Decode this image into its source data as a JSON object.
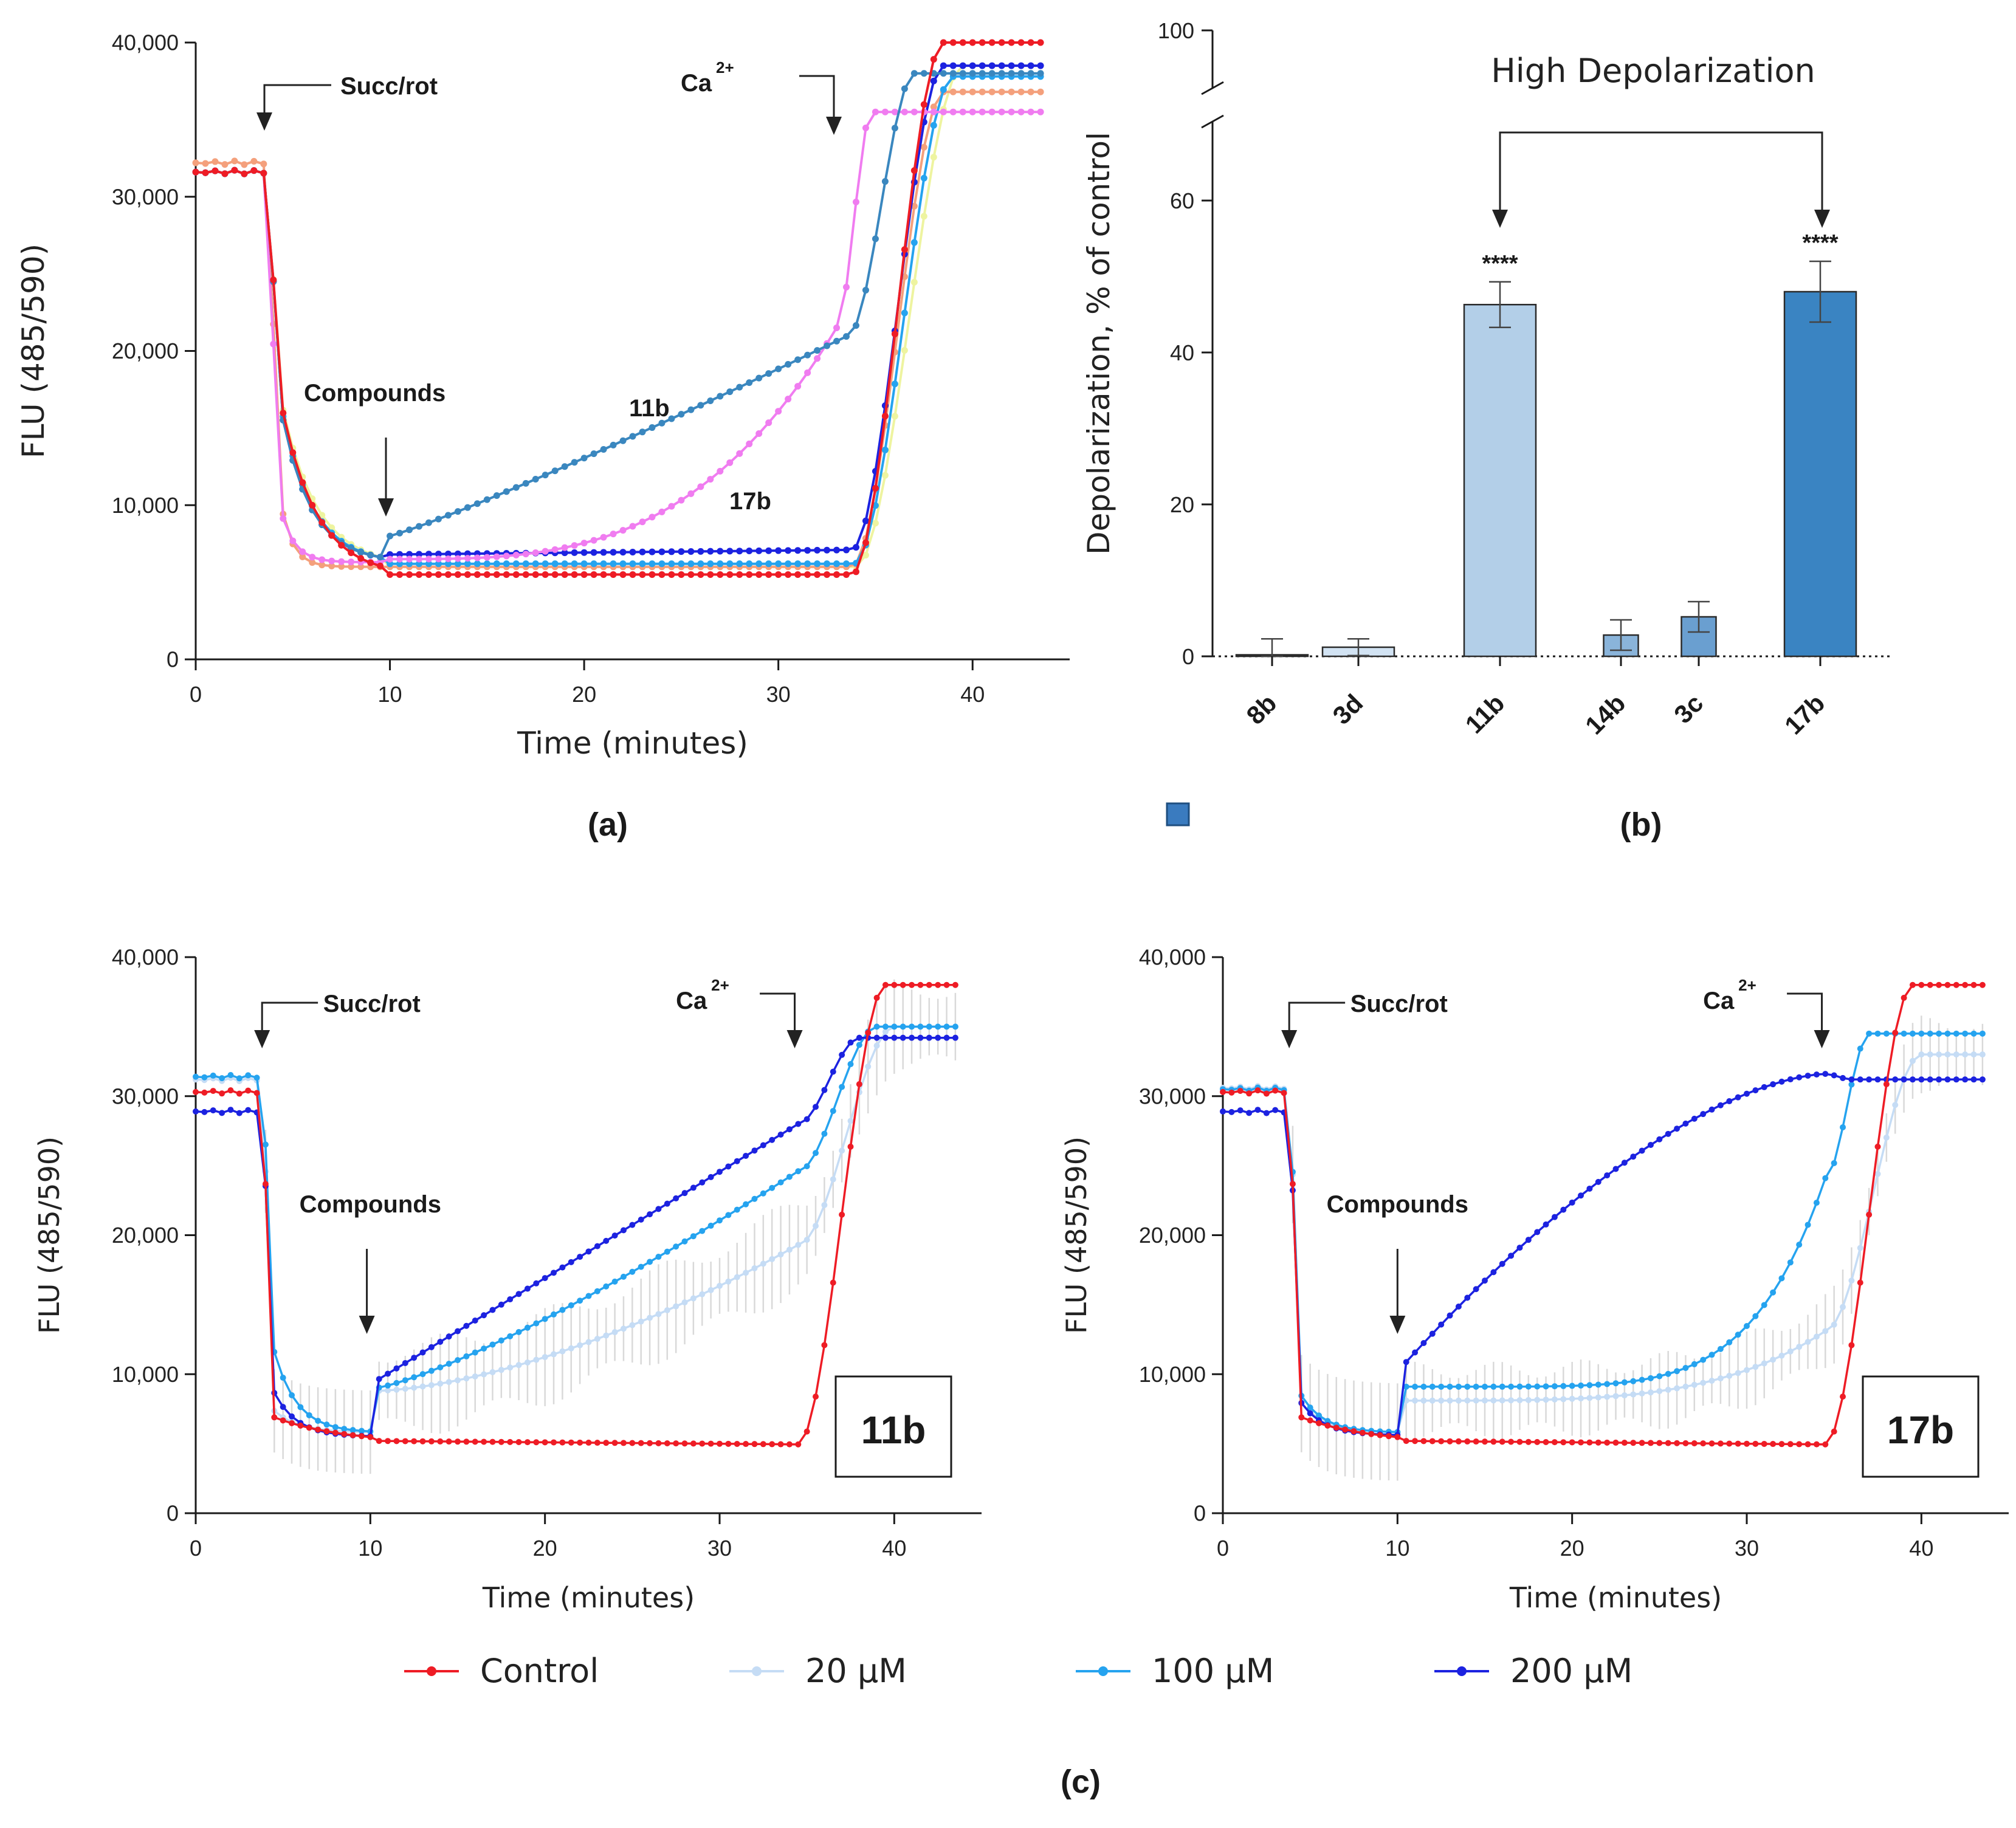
{
  "colors": {
    "control": "#ee1c25",
    "c20": "#c5dcf5",
    "c100": "#25a3ef",
    "c200": "#1c22e0",
    "c11b": "#3a87bf",
    "c17b": "#f07cf0",
    "salmon": "#f4a07c",
    "yellow": "#eef4a0",
    "red_text": "#ee1c25"
  },
  "chart_data": [
    {
      "panel": "a",
      "panel_label": "(a)",
      "type": "line",
      "xlabel": "Time (minutes)",
      "ylabel": "FLU (485/590)",
      "xlim": [
        0,
        45
      ],
      "ylim": [
        0,
        40000
      ],
      "xticks": [
        "0",
        "10",
        "20",
        "30",
        "40"
      ],
      "yticks": [
        "0",
        "10,000",
        "20,000",
        "30,000",
        "40,000"
      ],
      "annotations": [
        "Succ/rot",
        "Compounds",
        "Ca",
        "2+",
        "11b",
        "17b"
      ],
      "series": [
        {
          "name": "11b",
          "color": "c11b",
          "shape": "early_ca",
          "final": 38000
        },
        {
          "name": "17b",
          "color": "c17b",
          "shape": "exp_rise_17b",
          "final": 35500
        },
        {
          "name": "control",
          "color": "control",
          "shape": "flat_control",
          "final": 40000
        },
        {
          "name": "8b",
          "color": "c200",
          "shape": "flat_high",
          "final": 38500
        },
        {
          "name": "3d",
          "color": "c100",
          "shape": "flat_mid",
          "final": 37800
        },
        {
          "name": "14b",
          "color": "salmon",
          "shape": "fast_drop",
          "final": 36800
        },
        {
          "name": "3c",
          "color": "yellow",
          "shape": "flat_mid",
          "final": 38500
        }
      ]
    },
    {
      "panel": "b",
      "panel_label": "(b)",
      "type": "bar",
      "title": "High Depolarization",
      "ylabel": "Depolarization, % of control",
      "categories": [
        "8b",
        "3d",
        "11b",
        "14b",
        "3c",
        "17b"
      ],
      "values": [
        0.2,
        1.2,
        46.3,
        2.8,
        5.2,
        48.0
      ],
      "errors": [
        2.1,
        1.1,
        3.0,
        2.0,
        2.0,
        4.0
      ],
      "significance": [
        "",
        "",
        "****",
        "",
        "",
        "****"
      ],
      "ylim": [
        0,
        100
      ],
      "yticks": [
        "0",
        "20",
        "40",
        "60",
        "100"
      ]
    },
    {
      "panel": "c-left",
      "type": "line",
      "compound": "11b",
      "xlabel": "Time (minutes)",
      "ylabel": "FLU (485/590)",
      "xlim": [
        0,
        45
      ],
      "ylim": [
        0,
        40000
      ],
      "xticks": [
        "0",
        "10",
        "20",
        "30",
        "40"
      ],
      "yticks": [
        "0",
        "10,000",
        "20,000",
        "30,000",
        "40,000"
      ],
      "annotations": [
        "Succ/rot",
        "Compounds",
        "Ca",
        "2+"
      ],
      "series": [
        {
          "name": "20 μM",
          "color": "c20",
          "final": 35000
        },
        {
          "name": "100 μM",
          "color": "c100",
          "final": 35000
        },
        {
          "name": "200 μM",
          "color": "c200",
          "final": 34200
        },
        {
          "name": "Control",
          "color": "control",
          "final": 38000
        }
      ]
    },
    {
      "panel": "c-right",
      "type": "line",
      "compound": "17b",
      "xlabel": "Time (minutes)",
      "ylabel": "FLU (485/590)",
      "xlim": [
        0,
        45
      ],
      "ylim": [
        0,
        40000
      ],
      "xticks": [
        "0",
        "10",
        "20",
        "30",
        "40"
      ],
      "yticks": [
        "0",
        "10,000",
        "20,000",
        "30,000",
        "40,000"
      ],
      "annotations": [
        "Succ/rot",
        "Compounds",
        "Ca",
        "2+"
      ],
      "series": [
        {
          "name": "20 μM",
          "color": "c20",
          "final": 33000
        },
        {
          "name": "100 μM",
          "color": "c100",
          "final": 34500
        },
        {
          "name": "200 μM",
          "color": "c200",
          "final": 31200
        },
        {
          "name": "Control",
          "color": "control",
          "final": 38000
        }
      ]
    }
  ],
  "legend": [
    {
      "label": "Control",
      "color": "control"
    },
    {
      "label": "20 μM",
      "color": "c20"
    },
    {
      "label": "100 μM",
      "color": "c100"
    },
    {
      "label": "200 μM",
      "color": "c200"
    }
  ],
  "bottom_label": "(c)"
}
